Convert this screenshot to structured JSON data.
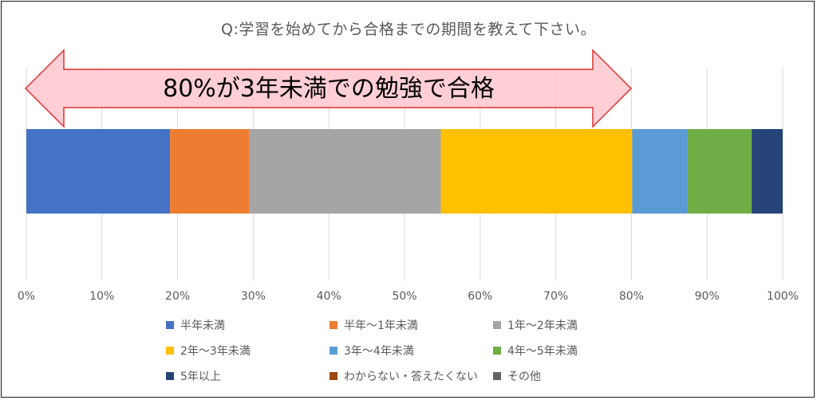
{
  "chart_data": {
    "type": "bar",
    "orientation": "horizontal-stacked-100",
    "title": "Q:学習を始めてから合格までの期間を教えて下さい。",
    "annotation": "80%が3年未満での勉強で合格",
    "x_ticks": [
      "0%",
      "10%",
      "20%",
      "30%",
      "40%",
      "50%",
      "60%",
      "70%",
      "80%",
      "90%",
      "100%"
    ],
    "xlim": [
      0,
      100
    ],
    "grid": true,
    "legend_position": "bottom",
    "series": [
      {
        "name": "半年未満",
        "value": 19.0,
        "color": "#4472C4"
      },
      {
        "name": "半年〜1年未満",
        "value": 10.5,
        "color": "#ED7D31"
      },
      {
        "name": "1年〜2年未満",
        "value": 25.3,
        "color": "#A5A5A5"
      },
      {
        "name": "2年〜3年未満",
        "value": 25.3,
        "color": "#FFC000"
      },
      {
        "name": "3年〜4年未満",
        "value": 7.3,
        "color": "#5B9BD5"
      },
      {
        "name": "4年〜5年未満",
        "value": 8.5,
        "color": "#70AD47"
      },
      {
        "name": "5年以上",
        "value": 4.1,
        "color": "#264478"
      },
      {
        "name": "わからない・答えたくない",
        "value": 0,
        "color": "#9E480E"
      },
      {
        "name": "その他",
        "value": 0,
        "color": "#636363"
      }
    ]
  }
}
